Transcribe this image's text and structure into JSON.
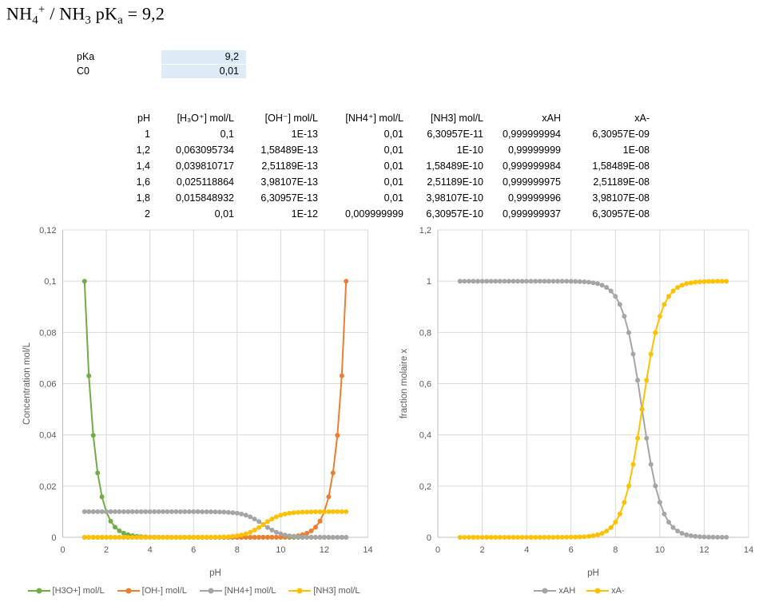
{
  "title": {
    "segments": [
      {
        "text": "NH"
      },
      {
        "sub": "4"
      },
      {
        "sup": "+"
      },
      {
        "text": " / NH"
      },
      {
        "sub": "3"
      },
      {
        "text": " pK"
      },
      {
        "sub": "a"
      },
      {
        "text": " = 9,2"
      }
    ],
    "plain": "NH4+ / NH3 pKa = 9,2"
  },
  "params": {
    "rows": [
      {
        "label": "pKa",
        "value": "9,2"
      },
      {
        "label": "C0",
        "value": "0,01"
      }
    ]
  },
  "table": {
    "headers": [
      "pH",
      "[H₃O⁺] mol/L",
      "[OH⁻] mol/L",
      "[NH4⁺] mol/L",
      "[NH3] mol/L",
      "xAH",
      "xA-"
    ],
    "rows": [
      [
        "1",
        "0,1",
        "1E-13",
        "0,01",
        "6,30957E-11",
        "0,999999994",
        "6,30957E-09"
      ],
      [
        "1,2",
        "0,063095734",
        "1,58489E-13",
        "0,01",
        "1E-10",
        "0,99999999",
        "1E-08"
      ],
      [
        "1,4",
        "0,039810717",
        "2,51189E-13",
        "0,01",
        "1,58489E-10",
        "0,999999984",
        "1,58489E-08"
      ],
      [
        "1,6",
        "0,025118864",
        "3,98107E-13",
        "0,01",
        "2,51189E-10",
        "0,999999975",
        "2,51189E-08"
      ],
      [
        "1,8",
        "0,015848932",
        "6,30957E-13",
        "0,01",
        "3,98107E-10",
        "0,99999996",
        "3,98107E-08"
      ],
      [
        "2",
        "0,01",
        "1E-12",
        "0,009999999",
        "6,30957E-10",
        "0,999999937",
        "6,30957E-08"
      ]
    ]
  },
  "colors": {
    "green": "#70AD47",
    "orange": "#ED7D31",
    "gray": "#A5A5A5",
    "yellow": "#FFC000",
    "cell_highlight": "#DDEBF7",
    "gridline": "#D9D9D9",
    "axis_line": "#BFBFBF",
    "axis_text": "#595959"
  },
  "chart_data": [
    {
      "type": "line",
      "title": "",
      "xlabel": "pH",
      "ylabel": "Concentration mol/L",
      "xlim": [
        0,
        14
      ],
      "ylim": [
        0,
        0.12
      ],
      "x_ticks": [
        "0",
        "2",
        "4",
        "6",
        "8",
        "10",
        "12",
        "14"
      ],
      "y_ticks": [
        "0",
        "0,02",
        "0,04",
        "0,06",
        "0,08",
        "0,1",
        "0,12"
      ],
      "grid": true,
      "legend_position": "bottom",
      "x": [
        1,
        1.2,
        1.4,
        1.6,
        1.8,
        2,
        2.2,
        2.4,
        2.6,
        2.8,
        3,
        3.2,
        3.4,
        3.6,
        3.8,
        4,
        4.2,
        4.4,
        4.6,
        4.8,
        5,
        5.2,
        5.4,
        5.6,
        5.8,
        6,
        6.2,
        6.4,
        6.6,
        6.8,
        7,
        7.2,
        7.4,
        7.6,
        7.8,
        8,
        8.2,
        8.4,
        8.6,
        8.8,
        9,
        9.2,
        9.4,
        9.6,
        9.8,
        10,
        10.2,
        10.4,
        10.6,
        10.8,
        11,
        11.2,
        11.4,
        11.6,
        11.8,
        12,
        12.2,
        12.4,
        12.6,
        12.8,
        13
      ],
      "series": [
        {
          "name": "[H3O+] mol/L",
          "color": "#70AD47",
          "values": [
            0.1,
            0.0630957,
            0.0398107,
            0.0251189,
            0.0158489,
            0.01,
            0.00630957,
            0.00398107,
            0.00251189,
            0.00158489,
            0.001,
            0.000630957,
            0.000398107,
            0.000251189,
            0.000158489,
            0.0001,
            6.30957e-05,
            3.98107e-05,
            2.51189e-05,
            1.58489e-05,
            1e-05,
            6.30957e-06,
            3.98107e-06,
            2.51189e-06,
            1.58489e-06,
            1e-06,
            6.30957e-07,
            3.98107e-07,
            2.51189e-07,
            1.58489e-07,
            1e-07,
            6.30957e-08,
            3.98107e-08,
            2.51189e-08,
            1.58489e-08,
            1e-08,
            6.30957e-09,
            3.98107e-09,
            2.51189e-09,
            1.58489e-09,
            1e-09,
            6.30957e-10,
            3.98107e-10,
            2.51189e-10,
            1.58489e-10,
            1e-10,
            6.30957e-11,
            3.98107e-11,
            2.51189e-11,
            1.58489e-11,
            1e-11,
            6.30957e-12,
            3.98107e-12,
            2.51189e-12,
            1.58489e-12,
            1e-12,
            6.30957e-13,
            3.98107e-13,
            2.51189e-13,
            1.58489e-13,
            1e-13
          ]
        },
        {
          "name": "[OH-] mol/L",
          "color": "#ED7D31",
          "values": [
            1e-13,
            1.58489e-13,
            2.51189e-13,
            3.98107e-13,
            6.30957e-13,
            1e-12,
            1.58489e-12,
            2.51189e-12,
            3.98107e-12,
            6.30957e-12,
            1e-11,
            1.58489e-11,
            2.51189e-11,
            3.98107e-11,
            6.30957e-11,
            1e-10,
            1.58489e-10,
            2.51189e-10,
            3.98107e-10,
            6.30957e-10,
            1e-09,
            1.58489e-09,
            2.51189e-09,
            3.98107e-09,
            6.30957e-09,
            1e-08,
            1.58489e-08,
            2.51189e-08,
            3.98107e-08,
            6.30957e-08,
            1e-07,
            1.58489e-07,
            2.51189e-07,
            3.98107e-07,
            6.30957e-07,
            1e-06,
            1.58489e-06,
            2.51189e-06,
            3.98107e-06,
            6.30957e-06,
            1e-05,
            1.58489e-05,
            2.51189e-05,
            3.98107e-05,
            6.30957e-05,
            0.0001,
            0.000158489,
            0.000251189,
            0.000398107,
            0.000630957,
            0.001,
            0.00158489,
            0.00251189,
            0.00398107,
            0.00630957,
            0.01,
            0.0158489,
            0.0251189,
            0.0398107,
            0.0630957,
            0.1
          ]
        },
        {
          "name": "[NH4+] mol/L",
          "color": "#A5A5A5",
          "values": [
            0.00999999994,
            0.0099999999,
            0.00999999984,
            0.00999999975,
            0.0099999996,
            0.00999999937,
            0.009999999,
            0.00999999842,
            0.00999999749,
            0.00999999602,
            0.00999999369,
            0.00999999,
            0.00999998415,
            0.00999997488,
            0.00999996019,
            0.0099999369,
            0.0099999,
            0.00999984151,
            0.00999974882,
            0.00999960191,
            0.00999936908,
            0.0099990001,
            0.00999841536,
            0.00999748874,
            0.00999602051,
            0.00999369441,
            0.00999000999,
            0.00998417625,
            0.00997494399,
            0.00996034719,
            0.00993729989,
            0.0099009901,
            0.00984397847,
            0.00975496512,
            0.00961712539,
            0.00940648852,
            0.00909090909,
            0.00863194265,
            0.00799240254,
            0.00715253538,
            0.0061308744,
            0.005,
            0.0038691256,
            0.00284746462,
            0.00200759746,
            0.00136805735,
            0.000909090909,
            0.000593510485,
            0.000382874371,
            0.000245034299,
            0.000156016588,
            9.90099e-05,
            6.27002e-05,
            3.96528e-05,
            2.50559e-05,
            1.58239e-05,
            9.99001e-06,
            6.30561e-06,
            3.97948e-06,
            2.51126e-06,
            1.58464e-06
          ]
        },
        {
          "name": "[NH3] mol/L",
          "color": "#FFC000",
          "values": [
            6.30957e-11,
            1e-10,
            1.58489e-10,
            2.51189e-10,
            3.98107e-10,
            6.30957e-10,
            1e-09,
            1.58489e-09,
            2.51189e-09,
            3.98107e-09,
            6.30957e-09,
            1e-08,
            1.58489e-08,
            2.51188e-08,
            3.98106e-08,
            6.30953e-08,
            1e-07,
            1.58487e-07,
            2.51183e-07,
            3.98091e-07,
            6.30917e-07,
            9.999e-07,
            1.58464e-06,
            2.51126e-06,
            3.97949e-06,
            6.30559e-06,
            9.99001e-06,
            1.58238e-05,
            2.5056e-05,
            3.96528e-05,
            6.27001e-05,
            9.90099e-05,
            0.000156017,
            0.000245034,
            0.000382874,
            0.00059351,
            0.000909091,
            0.00136806,
            0.0020076,
            0.00284746,
            0.00386913,
            0.005,
            0.00613087,
            0.00715254,
            0.0079924,
            0.00863194,
            0.00909091,
            0.00940649,
            0.00961713,
            0.00975497,
            0.00984398,
            0.0099009901,
            0.0099373,
            0.00996035,
            0.00997494,
            0.00998418,
            0.00999001,
            0.00999369,
            0.00999602,
            0.00999749,
            0.00999842
          ]
        }
      ]
    },
    {
      "type": "line",
      "title": "",
      "xlabel": "pH",
      "ylabel": "fraction molaire x",
      "xlim": [
        0,
        14
      ],
      "ylim": [
        0,
        1.2
      ],
      "x_ticks": [
        "0",
        "2",
        "4",
        "6",
        "8",
        "10",
        "12",
        "14"
      ],
      "y_ticks": [
        "0",
        "0,2",
        "0,4",
        "0,6",
        "0,8",
        "1",
        "1,2"
      ],
      "grid": true,
      "legend_position": "bottom",
      "x": [
        1,
        1.2,
        1.4,
        1.6,
        1.8,
        2,
        2.2,
        2.4,
        2.6,
        2.8,
        3,
        3.2,
        3.4,
        3.6,
        3.8,
        4,
        4.2,
        4.4,
        4.6,
        4.8,
        5,
        5.2,
        5.4,
        5.6,
        5.8,
        6,
        6.2,
        6.4,
        6.6,
        6.8,
        7,
        7.2,
        7.4,
        7.6,
        7.8,
        8,
        8.2,
        8.4,
        8.6,
        8.8,
        9,
        9.2,
        9.4,
        9.6,
        9.8,
        10,
        10.2,
        10.4,
        10.6,
        10.8,
        11,
        11.2,
        11.4,
        11.6,
        11.8,
        12,
        12.2,
        12.4,
        12.6,
        12.8,
        13
      ],
      "series": [
        {
          "name": "xAH",
          "color": "#A5A5A5",
          "values": [
            0.999999994,
            0.99999999,
            0.999999984,
            0.999999975,
            0.99999996,
            0.999999937,
            0.9999999,
            0.999999842,
            0.999999749,
            0.999999602,
            0.999999369,
            0.999999,
            0.999998415,
            0.999997488,
            0.999996019,
            0.99999369,
            0.99999,
            0.999984151,
            0.999974882,
            0.999960191,
            0.999936908,
            0.99990001,
            0.999841536,
            0.999748874,
            0.999602051,
            0.999369441,
            0.999000999,
            0.998417625,
            0.997494399,
            0.996034719,
            0.993729989,
            0.99009901,
            0.984397847,
            0.975496512,
            0.961712539,
            0.940648852,
            0.909090909,
            0.863194265,
            0.799240254,
            0.715253538,
            0.61308744,
            0.5,
            0.38691256,
            0.284746462,
            0.200759746,
            0.136805735,
            0.0909090909,
            0.0593510485,
            0.0382874371,
            0.0245034299,
            0.0156016588,
            0.00990099,
            0.00627002,
            0.00396528,
            0.00250559,
            0.00158239,
            0.000999001,
            0.000630561,
            0.000397948,
            0.000251126,
            0.000158464
          ]
        },
        {
          "name": "xA-",
          "color": "#FFC000",
          "values": [
            6.30957e-09,
            1e-08,
            1.58489e-08,
            2.51189e-08,
            3.98107e-08,
            6.30957e-08,
            1e-07,
            1.58489e-07,
            2.51189e-07,
            3.98107e-07,
            6.30957e-07,
            1e-06,
            1.58489e-06,
            2.51188e-06,
            3.98106e-06,
            6.30953e-06,
            1e-05,
            1.58487e-05,
            2.51183e-05,
            3.98091e-05,
            6.30917e-05,
            9.999e-05,
            0.000158464,
            0.000251126,
            0.000397949,
            0.000630559,
            0.000999001,
            0.00158238,
            0.0025056,
            0.00396528,
            0.00627001,
            0.00990099,
            0.0156017,
            0.0245034,
            0.0382874,
            0.059351,
            0.0909091,
            0.136806,
            0.20076,
            0.284746,
            0.386913,
            0.5,
            0.613087,
            0.715254,
            0.79924,
            0.863194,
            0.909091,
            0.940649,
            0.961713,
            0.975497,
            0.984398,
            0.990099,
            0.99373,
            0.996035,
            0.997494,
            0.998418,
            0.999001,
            0.999369,
            0.999602,
            0.999749,
            0.999842
          ]
        }
      ]
    }
  ]
}
